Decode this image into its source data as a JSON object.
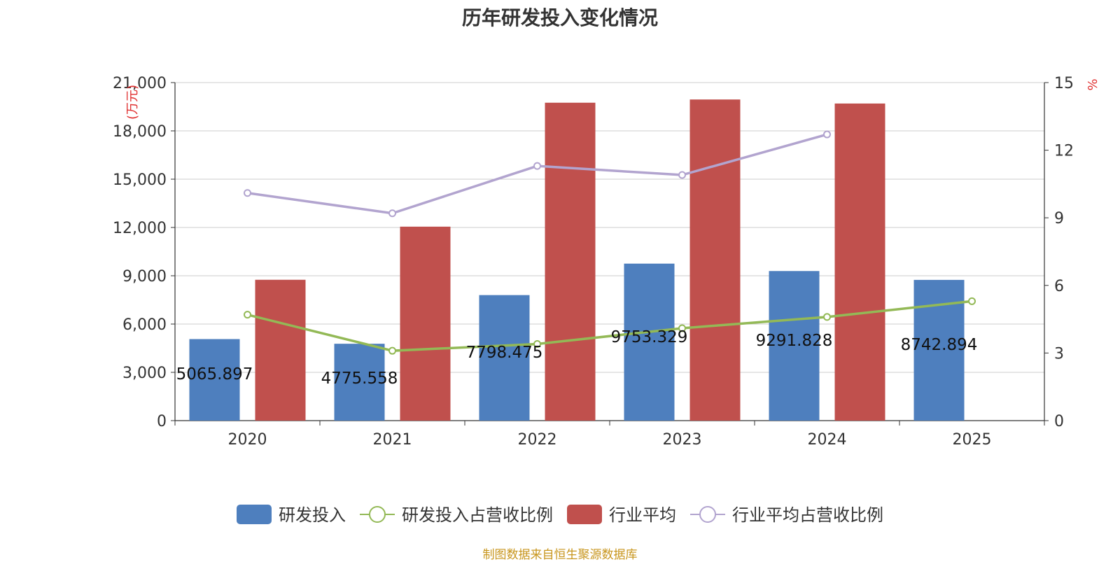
{
  "chart_data": {
    "type": "bar",
    "title": "历年研发投入变化情况",
    "categories": [
      "2020",
      "2021",
      "2022",
      "2023",
      "2024",
      "2025"
    ],
    "y_left": {
      "label": "(万元)",
      "ticks": [
        "0",
        "3,000",
        "6,000",
        "9,000",
        "12,000",
        "15,000",
        "18,000",
        "21,000"
      ],
      "range": [
        0,
        21000
      ]
    },
    "y_right": {
      "label": "%",
      "ticks": [
        "0",
        "3",
        "6",
        "9",
        "12",
        "15"
      ],
      "range": [
        0,
        15
      ]
    },
    "series": [
      {
        "name": "研发投入",
        "kind": "bar",
        "axis": "left",
        "color": "#4e7fbe",
        "values": [
          5065.897,
          4775.558,
          7798.475,
          9753.329,
          9291.828,
          8742.894
        ],
        "labels": [
          "5065.897",
          "4775.558",
          "7798.475",
          "9753.329",
          "9291.828",
          "8742.894"
        ]
      },
      {
        "name": "研发投入占营收比例",
        "kind": "line",
        "axis": "right",
        "color": "#93b956",
        "values": [
          4.7,
          3.1,
          3.4,
          4.1,
          4.6,
          5.3
        ]
      },
      {
        "name": "行业平均",
        "kind": "bar",
        "axis": "left",
        "color": "#c0504d",
        "values": [
          8750,
          12050,
          19750,
          19950,
          19700,
          null
        ]
      },
      {
        "name": "行业平均占营收比例",
        "kind": "line",
        "axis": "right",
        "color": "#b2a4cf",
        "values": [
          10.1,
          9.2,
          11.3,
          10.9,
          12.7,
          null
        ]
      }
    ],
    "grid": true,
    "legend_position": "bottom"
  },
  "source_text": "制图数据来自恒生聚源数据库"
}
